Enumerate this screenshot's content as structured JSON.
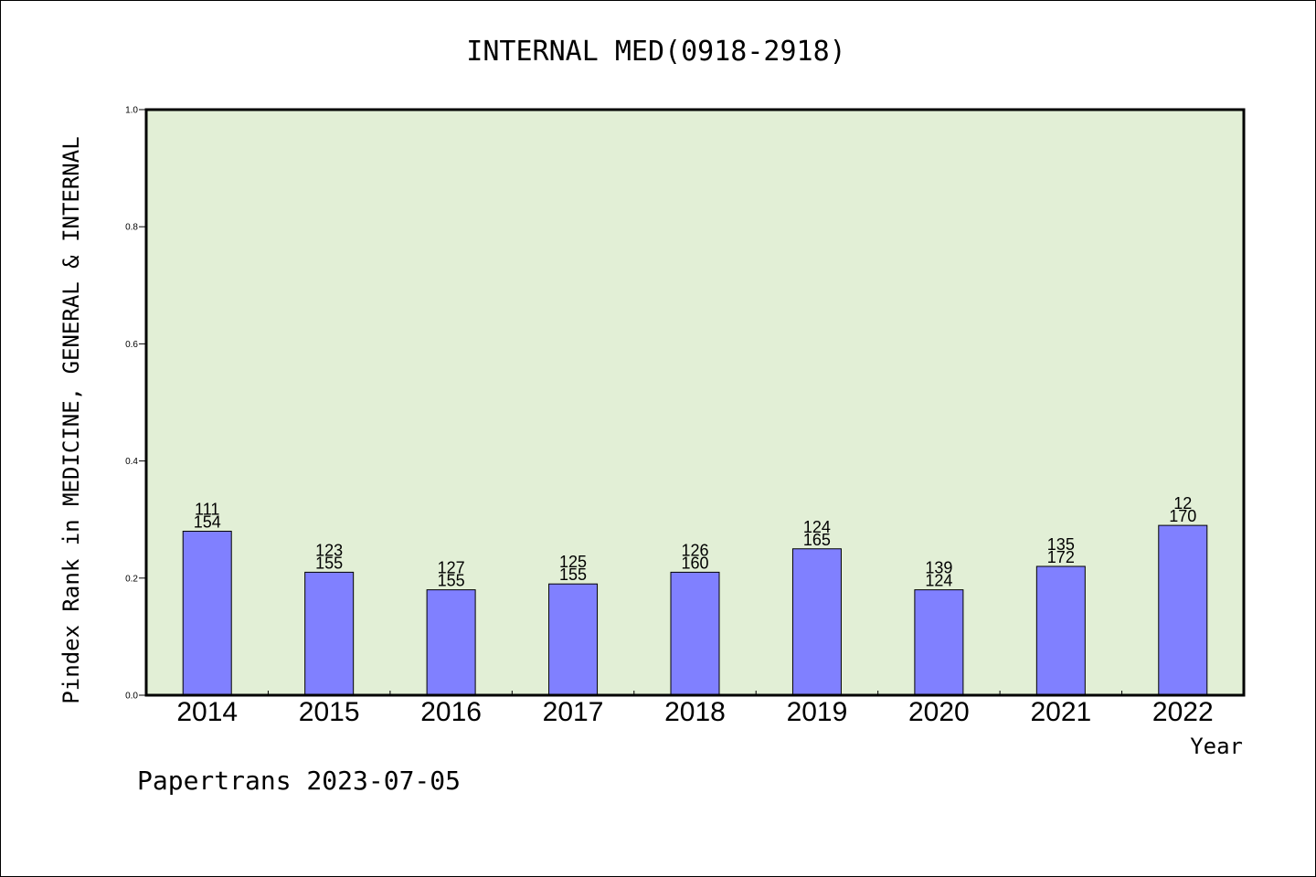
{
  "chart_data": {
    "type": "bar",
    "title": "INTERNAL MED(0918-2918)",
    "xlabel": "Year",
    "ylabel": "Pindex Rank in MEDICINE, GENERAL & INTERNAL",
    "footer": "Papertrans 2023-07-05",
    "categories": [
      "2014",
      "2015",
      "2016",
      "2017",
      "2018",
      "2019",
      "2020",
      "2021",
      "2022"
    ],
    "values": [
      0.28,
      0.21,
      0.18,
      0.19,
      0.21,
      0.25,
      0.18,
      0.22,
      0.29
    ],
    "labels_top": [
      "111",
      "123",
      "127",
      "125",
      "126",
      "124",
      "139",
      "135",
      "12"
    ],
    "labels_bottom": [
      "154",
      "155",
      "155",
      "155",
      "160",
      "165",
      "124",
      "172",
      "170"
    ],
    "ylim": [
      0,
      1.0
    ],
    "yticks": [
      "0.0",
      "0.2",
      "0.4",
      "0.6",
      "0.8",
      "1.0"
    ],
    "grid": false,
    "colors": {
      "bar": "#8080ff",
      "plot_bg": "#e2efd6",
      "axis": "#000000"
    }
  }
}
